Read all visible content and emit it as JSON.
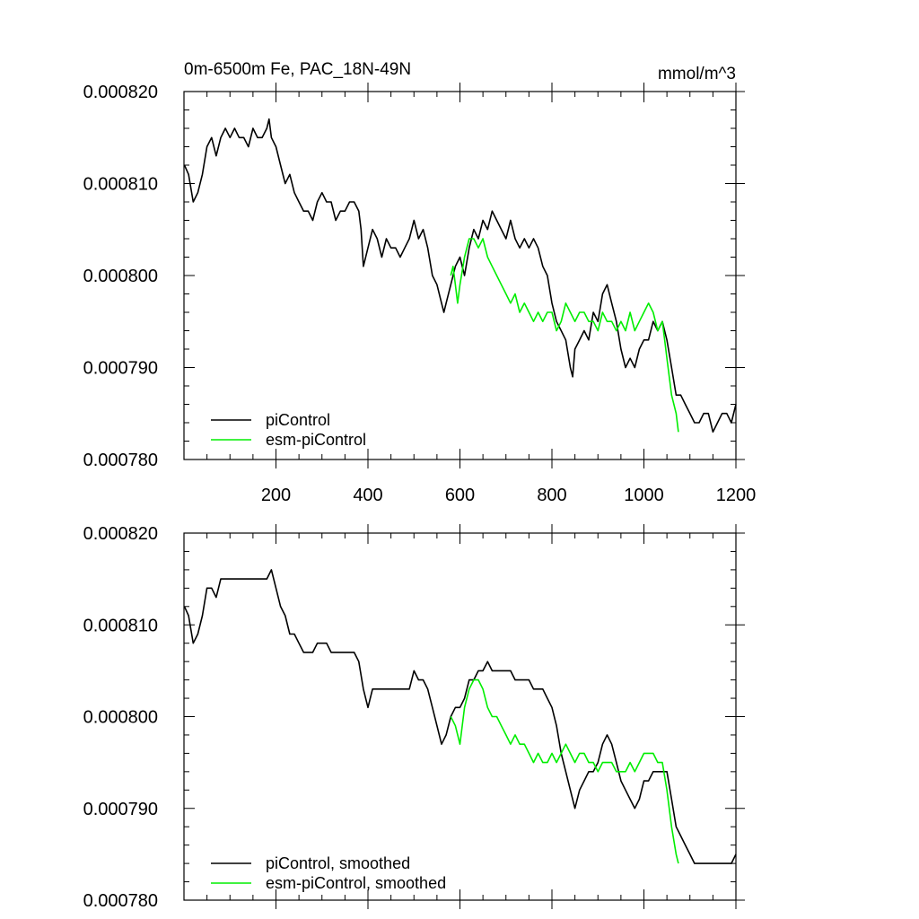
{
  "figure": {
    "title_left": "0m-6500m Fe, PAC_18N-49N",
    "title_right": "mmol/m^3"
  },
  "colors": {
    "picontrol": "#000000",
    "esm_picontrol": "#00ee00",
    "axis": "#000000"
  },
  "chart_data": [
    {
      "type": "line",
      "title": "0m-6500m Fe, PAC_18N-49N",
      "units": "mmol/m^3",
      "xlim": [
        0,
        1200
      ],
      "ylim": [
        0.00078,
        0.00082
      ],
      "x_ticks": [
        200,
        400,
        600,
        800,
        1000,
        1200
      ],
      "x_tick_labels": [
        "200",
        "400",
        "600",
        "800",
        "1000",
        "1200"
      ],
      "y_ticks": [
        0.00078,
        0.00079,
        0.0008,
        0.00081,
        0.00082
      ],
      "y_tick_labels": [
        "0.000780",
        "0.000790",
        "0.000800",
        "0.000810",
        "0.000820"
      ],
      "legend_position": "bottom-left",
      "series": [
        {
          "name": "piControl",
          "color": "#000000",
          "x": [
            1,
            10,
            20,
            30,
            40,
            50,
            60,
            70,
            80,
            90,
            100,
            110,
            120,
            130,
            140,
            150,
            160,
            170,
            180,
            185,
            190,
            200,
            210,
            220,
            230,
            240,
            250,
            260,
            270,
            280,
            290,
            300,
            310,
            320,
            330,
            340,
            350,
            360,
            370,
            380,
            385,
            390,
            400,
            410,
            420,
            430,
            440,
            450,
            460,
            470,
            480,
            490,
            500,
            510,
            520,
            530,
            540,
            550,
            560,
            565,
            570,
            580,
            590,
            600,
            610,
            620,
            630,
            640,
            650,
            660,
            670,
            680,
            690,
            700,
            710,
            720,
            730,
            740,
            750,
            760,
            770,
            780,
            790,
            800,
            810,
            820,
            830,
            840,
            845,
            850,
            860,
            870,
            880,
            890,
            900,
            910,
            920,
            930,
            940,
            950,
            960,
            970,
            980,
            990,
            1000,
            1010,
            1020,
            1030,
            1040,
            1050,
            1060,
            1070,
            1080,
            1090,
            1100,
            1110,
            1120,
            1130,
            1140,
            1150,
            1160,
            1170,
            1180,
            1190,
            1200
          ],
          "y": [
            0.000812,
            0.000811,
            0.000808,
            0.000809,
            0.000811,
            0.000814,
            0.000815,
            0.000813,
            0.000815,
            0.000816,
            0.000815,
            0.000816,
            0.000815,
            0.000815,
            0.000814,
            0.000816,
            0.000815,
            0.000815,
            0.000816,
            0.000817,
            0.000815,
            0.000814,
            0.000812,
            0.00081,
            0.000811,
            0.000809,
            0.000808,
            0.000807,
            0.000807,
            0.000806,
            0.000808,
            0.000809,
            0.000808,
            0.000808,
            0.000806,
            0.000807,
            0.000807,
            0.000808,
            0.000808,
            0.000807,
            0.000805,
            0.000801,
            0.000803,
            0.000805,
            0.000804,
            0.000802,
            0.000804,
            0.000803,
            0.000803,
            0.000802,
            0.000803,
            0.000804,
            0.000806,
            0.000804,
            0.000805,
            0.000803,
            0.0008,
            0.000799,
            0.000797,
            0.000796,
            0.000797,
            0.000799,
            0.000801,
            0.000802,
            0.0008,
            0.000803,
            0.000805,
            0.000804,
            0.000806,
            0.000805,
            0.000807,
            0.000806,
            0.000805,
            0.000804,
            0.000806,
            0.000804,
            0.000803,
            0.000804,
            0.000803,
            0.000804,
            0.000803,
            0.000801,
            0.0008,
            0.000797,
            0.000795,
            0.000794,
            0.000793,
            0.00079,
            0.000789,
            0.000792,
            0.000793,
            0.000794,
            0.000793,
            0.000796,
            0.000795,
            0.000798,
            0.000799,
            0.000797,
            0.000795,
            0.000792,
            0.00079,
            0.000791,
            0.00079,
            0.000792,
            0.000793,
            0.000793,
            0.000795,
            0.000794,
            0.000795,
            0.000793,
            0.00079,
            0.000787,
            0.000787,
            0.000786,
            0.000785,
            0.000784,
            0.000784,
            0.000785,
            0.000785,
            0.000783,
            0.000784,
            0.000785,
            0.000785,
            0.000784,
            0.000786
          ]
        },
        {
          "name": "esm-piControl",
          "color": "#00ee00",
          "x": [
            580,
            585,
            590,
            595,
            600,
            610,
            620,
            630,
            640,
            650,
            660,
            670,
            680,
            690,
            700,
            710,
            720,
            730,
            740,
            750,
            760,
            770,
            780,
            790,
            800,
            810,
            820,
            830,
            840,
            850,
            860,
            870,
            880,
            890,
            900,
            910,
            920,
            930,
            940,
            950,
            960,
            970,
            980,
            990,
            1000,
            1010,
            1020,
            1030,
            1040,
            1045,
            1050,
            1060,
            1070,
            1075
          ],
          "y": [
            0.0008,
            0.000801,
            0.000799,
            0.000797,
            0.000799,
            0.000802,
            0.000804,
            0.000804,
            0.000803,
            0.000804,
            0.000802,
            0.000801,
            0.0008,
            0.000799,
            0.000798,
            0.000797,
            0.000798,
            0.000796,
            0.000797,
            0.000796,
            0.000795,
            0.000796,
            0.000795,
            0.000796,
            0.000796,
            0.000794,
            0.000795,
            0.000797,
            0.000796,
            0.000795,
            0.000796,
            0.000796,
            0.000795,
            0.000795,
            0.000794,
            0.000796,
            0.000795,
            0.000795,
            0.000794,
            0.000795,
            0.000794,
            0.000796,
            0.000794,
            0.000795,
            0.000796,
            0.000797,
            0.000796,
            0.000794,
            0.000795,
            0.000793,
            0.000791,
            0.000787,
            0.000785,
            0.000783
          ]
        }
      ]
    },
    {
      "type": "line",
      "xlim": [
        0,
        1200
      ],
      "ylim": [
        0.00078,
        0.00082
      ],
      "x_ticks": [
        200,
        400,
        600,
        800,
        1000,
        1200
      ],
      "y_ticks": [
        0.00078,
        0.00079,
        0.0008,
        0.00081,
        0.00082
      ],
      "y_tick_labels": [
        "0.000780",
        "0.000790",
        "0.000800",
        "0.000810",
        "0.000820"
      ],
      "legend_position": "bottom-left",
      "series": [
        {
          "name": "piControl, smoothed",
          "color": "#000000",
          "x": [
            1,
            10,
            20,
            30,
            40,
            50,
            60,
            70,
            80,
            90,
            100,
            110,
            120,
            130,
            140,
            150,
            160,
            170,
            180,
            190,
            200,
            210,
            220,
            230,
            240,
            250,
            260,
            270,
            280,
            290,
            300,
            310,
            320,
            330,
            340,
            350,
            360,
            370,
            380,
            390,
            400,
            410,
            420,
            430,
            440,
            450,
            460,
            470,
            480,
            490,
            500,
            510,
            520,
            530,
            540,
            550,
            560,
            570,
            580,
            590,
            600,
            610,
            620,
            630,
            640,
            650,
            660,
            670,
            680,
            690,
            700,
            710,
            720,
            730,
            740,
            750,
            760,
            770,
            780,
            790,
            800,
            810,
            820,
            830,
            840,
            850,
            860,
            870,
            880,
            890,
            900,
            910,
            920,
            930,
            940,
            950,
            960,
            970,
            980,
            990,
            1000,
            1010,
            1020,
            1030,
            1040,
            1050,
            1060,
            1070,
            1080,
            1090,
            1100,
            1110,
            1120,
            1130,
            1140,
            1150,
            1160,
            1170,
            1180,
            1190,
            1200
          ],
          "y": [
            0.000812,
            0.000811,
            0.000808,
            0.000809,
            0.000811,
            0.000814,
            0.000814,
            0.000813,
            0.000815,
            0.000815,
            0.000815,
            0.000815,
            0.000815,
            0.000815,
            0.000815,
            0.000815,
            0.000815,
            0.000815,
            0.000815,
            0.000816,
            0.000814,
            0.000812,
            0.000811,
            0.000809,
            0.000809,
            0.000808,
            0.000807,
            0.000807,
            0.000807,
            0.000808,
            0.000808,
            0.000808,
            0.000807,
            0.000807,
            0.000807,
            0.000807,
            0.000807,
            0.000807,
            0.000806,
            0.000803,
            0.000801,
            0.000803,
            0.000803,
            0.000803,
            0.000803,
            0.000803,
            0.000803,
            0.000803,
            0.000803,
            0.000803,
            0.000805,
            0.000804,
            0.000804,
            0.000803,
            0.000801,
            0.000799,
            0.000797,
            0.000798,
            0.0008,
            0.000801,
            0.000801,
            0.000802,
            0.000804,
            0.000804,
            0.000805,
            0.000805,
            0.000806,
            0.000805,
            0.000805,
            0.000805,
            0.000805,
            0.000805,
            0.000804,
            0.000804,
            0.000804,
            0.000804,
            0.000803,
            0.000803,
            0.000803,
            0.000802,
            0.000801,
            0.000799,
            0.000796,
            0.000794,
            0.000792,
            0.00079,
            0.000792,
            0.000793,
            0.000794,
            0.000794,
            0.000795,
            0.000797,
            0.000798,
            0.000797,
            0.000795,
            0.000793,
            0.000792,
            0.000791,
            0.00079,
            0.000791,
            0.000793,
            0.000793,
            0.000794,
            0.000794,
            0.000794,
            0.000794,
            0.000791,
            0.000788,
            0.000787,
            0.000786,
            0.000785,
            0.000784,
            0.000784,
            0.000784,
            0.000784,
            0.000784,
            0.000784,
            0.000784,
            0.000784,
            0.000784,
            0.000785
          ]
        },
        {
          "name": "esm-piControl, smoothed",
          "color": "#00ee00",
          "x": [
            580,
            590,
            600,
            610,
            620,
            630,
            640,
            650,
            660,
            670,
            680,
            690,
            700,
            710,
            720,
            730,
            740,
            750,
            760,
            770,
            780,
            790,
            800,
            810,
            820,
            830,
            840,
            850,
            860,
            870,
            880,
            890,
            900,
            910,
            920,
            930,
            940,
            950,
            960,
            970,
            980,
            990,
            1000,
            1010,
            1020,
            1030,
            1040,
            1050,
            1060,
            1070,
            1075
          ],
          "y": [
            0.0008,
            0.000799,
            0.000797,
            0.000801,
            0.000803,
            0.000804,
            0.000804,
            0.000803,
            0.000801,
            0.0008,
            0.0008,
            0.000799,
            0.000798,
            0.000797,
            0.000798,
            0.000797,
            0.000797,
            0.000796,
            0.000795,
            0.000796,
            0.000795,
            0.000795,
            0.000796,
            0.000795,
            0.000796,
            0.000797,
            0.000796,
            0.000795,
            0.000796,
            0.000796,
            0.000795,
            0.000795,
            0.000794,
            0.000795,
            0.000795,
            0.000795,
            0.000794,
            0.000794,
            0.000794,
            0.000795,
            0.000794,
            0.000795,
            0.000796,
            0.000796,
            0.000796,
            0.000795,
            0.000795,
            0.000792,
            0.000788,
            0.000785,
            0.000784
          ]
        }
      ]
    }
  ]
}
